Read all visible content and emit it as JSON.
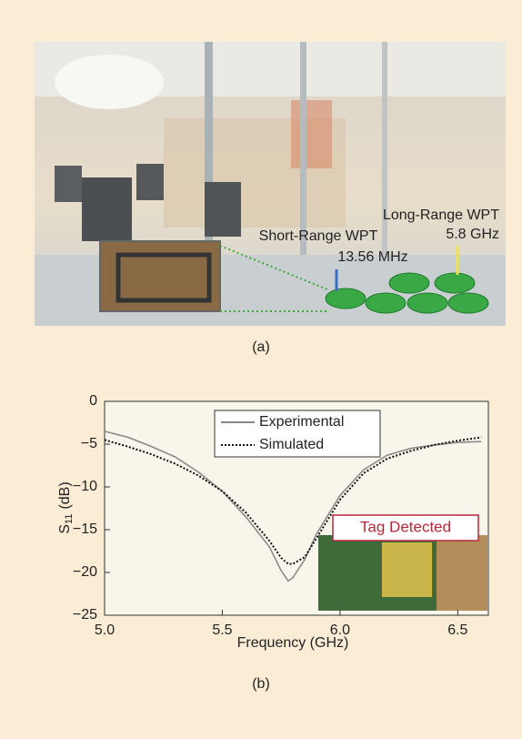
{
  "figure_a": {
    "long_range": "Long-Range WPT",
    "long_freq": "5.8 GHz",
    "short_range": "Short-Range WPT",
    "short_freq": "13.56 MHz",
    "caption": "(a)"
  },
  "chart_data": {
    "type": "line",
    "xlabel": "Frequency (GHz)",
    "ylabel": "S",
    "ylabel_subscript": "11",
    "ylabel_unit": "(dB)",
    "caption": "(b)",
    "annotation": "Tag Detected",
    "x": [
      5.0,
      5.1,
      5.2,
      5.3,
      5.4,
      5.5,
      5.6,
      5.7,
      5.75,
      5.78,
      5.8,
      5.85,
      5.9,
      6.0,
      6.1,
      6.2,
      6.3,
      6.4,
      6.5,
      6.6
    ],
    "series": [
      {
        "name": "Experimental",
        "color": "#8a8a8a",
        "dash": "solid",
        "values": [
          -3.5,
          -4.2,
          -5.3,
          -6.5,
          -8.3,
          -10.5,
          -13.5,
          -17,
          -19.8,
          -21,
          -20.6,
          -18.5,
          -15.5,
          -11,
          -8,
          -6.3,
          -5.5,
          -5.1,
          -4.8,
          -4.7
        ]
      },
      {
        "name": "Simulated",
        "color": "#111111",
        "dash": "dotted",
        "values": [
          -4.5,
          -5.3,
          -6.2,
          -7.3,
          -8.7,
          -10.5,
          -13,
          -16.3,
          -18.3,
          -19,
          -19,
          -18.2,
          -16,
          -11.5,
          -8.4,
          -6.7,
          -5.8,
          -5.1,
          -4.6,
          -4.2
        ]
      }
    ],
    "xlim": [
      5.0,
      6.63
    ],
    "xticks": [
      {
        "value": 5,
        "label": "5.0"
      },
      5.5,
      {
        "value": 6,
        "label": "6.0"
      },
      6.5
    ],
    "ylim": [
      -25,
      0
    ],
    "yticks": [
      {
        "value": -25,
        "label": "−25"
      },
      {
        "value": -20,
        "label": "−20"
      },
      {
        "value": -15,
        "label": "−15"
      },
      {
        "value": -10,
        "label": "−10"
      },
      {
        "value": -5,
        "label": "−5"
      },
      0
    ]
  }
}
